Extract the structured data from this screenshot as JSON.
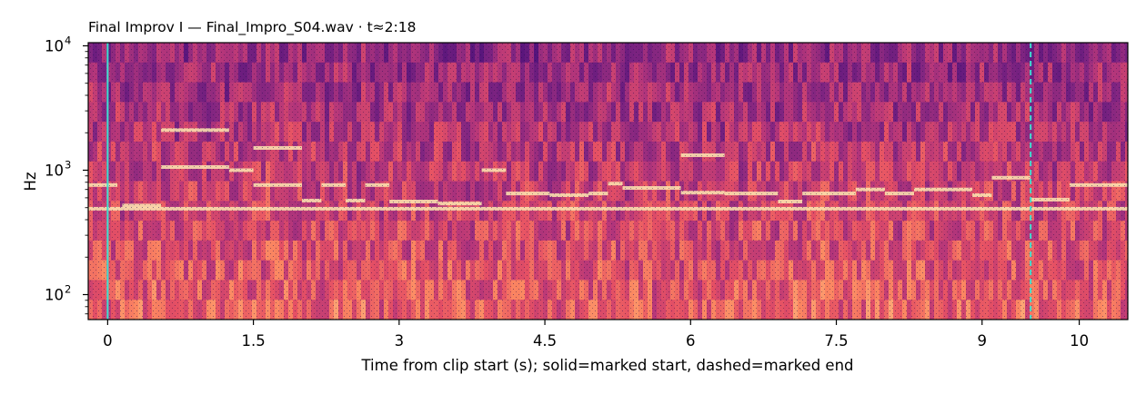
{
  "chart_data": {
    "type": "heatmap",
    "subtype": "spectrogram",
    "title": "Final Improv I  —  Final_Impro_S04.wav · t≈2:18",
    "xlabel": "Time from clip start (s); solid=marked start, dashed=marked end",
    "ylabel": "Hz",
    "x_scale": "linear",
    "y_scale": "log",
    "xlim": [
      -0.2,
      10.5
    ],
    "ylim": [
      63,
      10600
    ],
    "x_ticks": [
      0,
      1.5,
      3,
      4.5,
      6,
      7.5,
      9,
      10
    ],
    "x_tick_labels": [
      "0",
      "1.5",
      "3",
      "4.5",
      "6",
      "7.5",
      "9",
      "10"
    ],
    "y_ticks": [
      100,
      1000,
      10000
    ],
    "y_tick_labels": [
      "10",
      "10",
      "10"
    ],
    "y_tick_exponents": [
      "2",
      "3",
      "4"
    ],
    "colormap": "magma",
    "markers": [
      {
        "x": 0.0,
        "style": "solid",
        "color": "#40e0d0"
      },
      {
        "x": 9.5,
        "style": "dashed",
        "color": "#40e0d0"
      }
    ],
    "partials": [
      {
        "t0": -0.2,
        "t1": 0.1,
        "f": 760
      },
      {
        "t0": 0.15,
        "t1": 0.55,
        "f": 520
      },
      {
        "t0": 0.55,
        "t1": 1.25,
        "f": 1060
      },
      {
        "t0": 0.55,
        "t1": 1.25,
        "f": 2100
      },
      {
        "t0": 1.25,
        "t1": 1.5,
        "f": 1000
      },
      {
        "t0": 1.5,
        "t1": 2.0,
        "f": 760
      },
      {
        "t0": 1.5,
        "t1": 2.0,
        "f": 1510
      },
      {
        "t0": 2.0,
        "t1": 2.2,
        "f": 570
      },
      {
        "t0": 2.2,
        "t1": 2.45,
        "f": 760
      },
      {
        "t0": 2.45,
        "t1": 2.65,
        "f": 570
      },
      {
        "t0": 2.65,
        "t1": 2.9,
        "f": 760
      },
      {
        "t0": 2.9,
        "t1": 3.4,
        "f": 560
      },
      {
        "t0": 3.4,
        "t1": 3.85,
        "f": 540
      },
      {
        "t0": 3.85,
        "t1": 4.1,
        "f": 1000
      },
      {
        "t0": 4.1,
        "t1": 4.55,
        "f": 650
      },
      {
        "t0": 4.55,
        "t1": 4.95,
        "f": 630
      },
      {
        "t0": 4.95,
        "t1": 5.15,
        "f": 650
      },
      {
        "t0": 5.15,
        "t1": 5.3,
        "f": 780
      },
      {
        "t0": 5.3,
        "t1": 5.9,
        "f": 720
      },
      {
        "t0": 5.9,
        "t1": 6.35,
        "f": 660
      },
      {
        "t0": 5.9,
        "t1": 6.35,
        "f": 1320
      },
      {
        "t0": 6.35,
        "t1": 6.9,
        "f": 650
      },
      {
        "t0": 6.9,
        "t1": 7.15,
        "f": 560
      },
      {
        "t0": 7.15,
        "t1": 7.7,
        "f": 650
      },
      {
        "t0": 7.7,
        "t1": 8.0,
        "f": 700
      },
      {
        "t0": 8.0,
        "t1": 8.3,
        "f": 650
      },
      {
        "t0": 8.3,
        "t1": 8.9,
        "f": 700
      },
      {
        "t0": 8.9,
        "t1": 9.1,
        "f": 630
      },
      {
        "t0": 9.1,
        "t1": 9.5,
        "f": 870
      },
      {
        "t0": 9.5,
        "t1": 9.9,
        "f": 580
      },
      {
        "t0": 9.9,
        "t1": 10.5,
        "f": 760
      },
      {
        "t0": -0.2,
        "t1": 10.5,
        "f": 490
      }
    ]
  }
}
